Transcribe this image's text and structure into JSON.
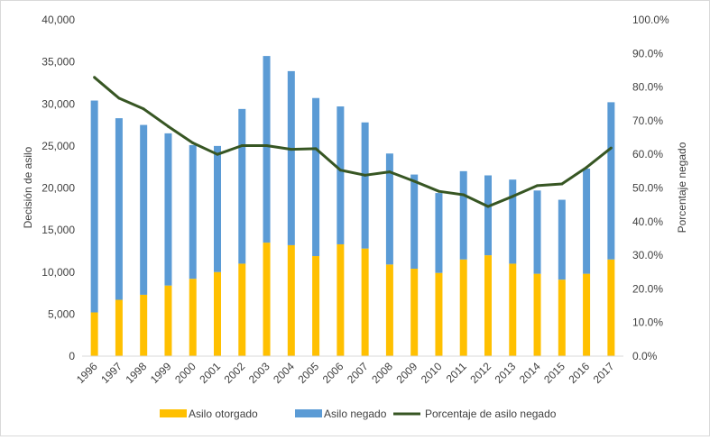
{
  "chart_data": {
    "type": "bar",
    "stacked": true,
    "title": "",
    "categories": [
      "1996",
      "1997",
      "1998",
      "1999",
      "2000",
      "2001",
      "2002",
      "2003",
      "2004",
      "2005",
      "2006",
      "2007",
      "2008",
      "2009",
      "2010",
      "2011",
      "2012",
      "2013",
      "2014",
      "2015",
      "2016",
      "2017"
    ],
    "series": [
      {
        "name": "Asilo otorgado",
        "axis": "left",
        "color": "#ffc000",
        "values": [
          5200,
          6700,
          7300,
          8400,
          9200,
          10000,
          11000,
          13500,
          13200,
          11900,
          13300,
          12800,
          10900,
          10400,
          9900,
          11500,
          12000,
          11000,
          9800,
          9100,
          9800,
          11500
        ]
      },
      {
        "name": "Asilo negado",
        "axis": "left",
        "color": "#5b9bd5",
        "values": [
          25200,
          21600,
          20200,
          18100,
          15900,
          15000,
          18400,
          22200,
          20700,
          18800,
          16400,
          15000,
          13200,
          11200,
          9500,
          10500,
          9500,
          10000,
          9900,
          9500,
          12500,
          18700
        ]
      },
      {
        "name": "Porcentaje de asilo negado",
        "axis": "right",
        "type": "line",
        "color": "#375623",
        "values": [
          82.9,
          76.7,
          73.5,
          68.3,
          63.4,
          60.0,
          62.6,
          62.6,
          61.5,
          61.7,
          55.3,
          53.8,
          54.8,
          52.0,
          49.0,
          48.0,
          44.5,
          47.5,
          50.7,
          51.2,
          56.1,
          61.9
        ]
      }
    ],
    "ylabel": "Decisión de asilo",
    "y2label": "Porcentaje negado",
    "xlabel": "",
    "ylim": [
      0,
      40000
    ],
    "y2lim": [
      0,
      100
    ],
    "yticks": [
      "0",
      "5,000",
      "10,000",
      "15,000",
      "20,000",
      "25,000",
      "30,000",
      "35,000",
      "40,000"
    ],
    "y2ticks": [
      "0.0%",
      "10.0%",
      "20.0%",
      "30.0%",
      "40.0%",
      "50.0%",
      "60.0%",
      "70.0%",
      "80.0%",
      "90.0%",
      "100.0%"
    ],
    "legend": [
      "Asilo otorgado",
      "Asilo negado",
      "Porcentaje de asilo negado"
    ],
    "legend_position": "bottom",
    "grid": false
  }
}
